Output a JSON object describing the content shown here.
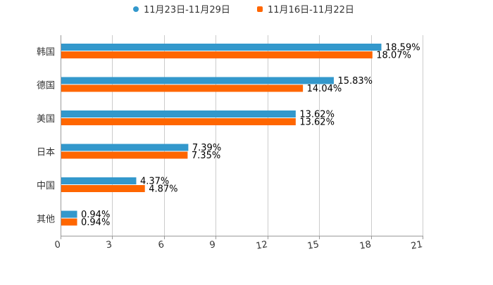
{
  "chart_data": {
    "type": "bar",
    "orientation": "horizontal",
    "categories": [
      "韩国",
      "德国",
      "美国",
      "日本",
      "中国",
      "其他"
    ],
    "series": [
      {
        "name": "11月23日-11月29日",
        "color": "#3398cc",
        "values": [
          18.59,
          15.83,
          13.62,
          7.39,
          4.37,
          0.94
        ],
        "labels": [
          "18.59%",
          "15.83%",
          "13.62%",
          "7.39%",
          "4.37%",
          "0.94%"
        ]
      },
      {
        "name": "11月16日-11月22日",
        "color": "#ff6600",
        "values": [
          18.07,
          14.04,
          13.62,
          7.35,
          4.87,
          0.94
        ],
        "labels": [
          "18.07%",
          "14.04%",
          "13.62%",
          "7.35%",
          "4.87%",
          "0.94%"
        ]
      }
    ],
    "xlim": [
      0,
      21
    ],
    "xticks": [
      "0",
      "3",
      "6",
      "9",
      "12",
      "15",
      "18",
      "21"
    ],
    "title": "",
    "xlabel": "",
    "ylabel": "",
    "grid": true,
    "legend_position": "top-center",
    "grid_color": "#cccccc",
    "axis_color": "#999999"
  }
}
